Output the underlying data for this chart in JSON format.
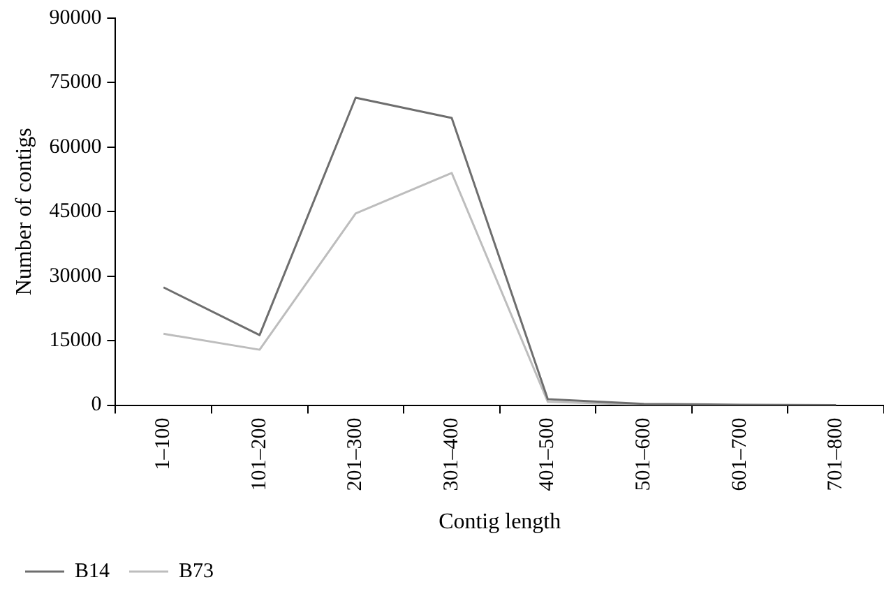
{
  "chart_data": {
    "type": "line",
    "xlabel": "Contig length",
    "ylabel": "Number of contigs",
    "categories": [
      "1–100",
      "101–200",
      "201–300",
      "301–400",
      "401–500",
      "501–600",
      "601–700",
      "701–800"
    ],
    "series": [
      {
        "name": "B14",
        "color": "#6e6e6e",
        "values": [
          27400,
          16300,
          71500,
          66800,
          1400,
          300,
          100,
          0
        ]
      },
      {
        "name": "B73",
        "color": "#bdbdbd",
        "values": [
          16600,
          12900,
          44600,
          54000,
          800,
          100,
          0,
          0
        ]
      }
    ],
    "ylim": [
      0,
      90000
    ],
    "yticks": [
      0,
      15000,
      30000,
      45000,
      60000,
      75000,
      90000
    ],
    "grid": false,
    "legend": "bottom",
    "marker": "none",
    "line_style": "solid"
  }
}
